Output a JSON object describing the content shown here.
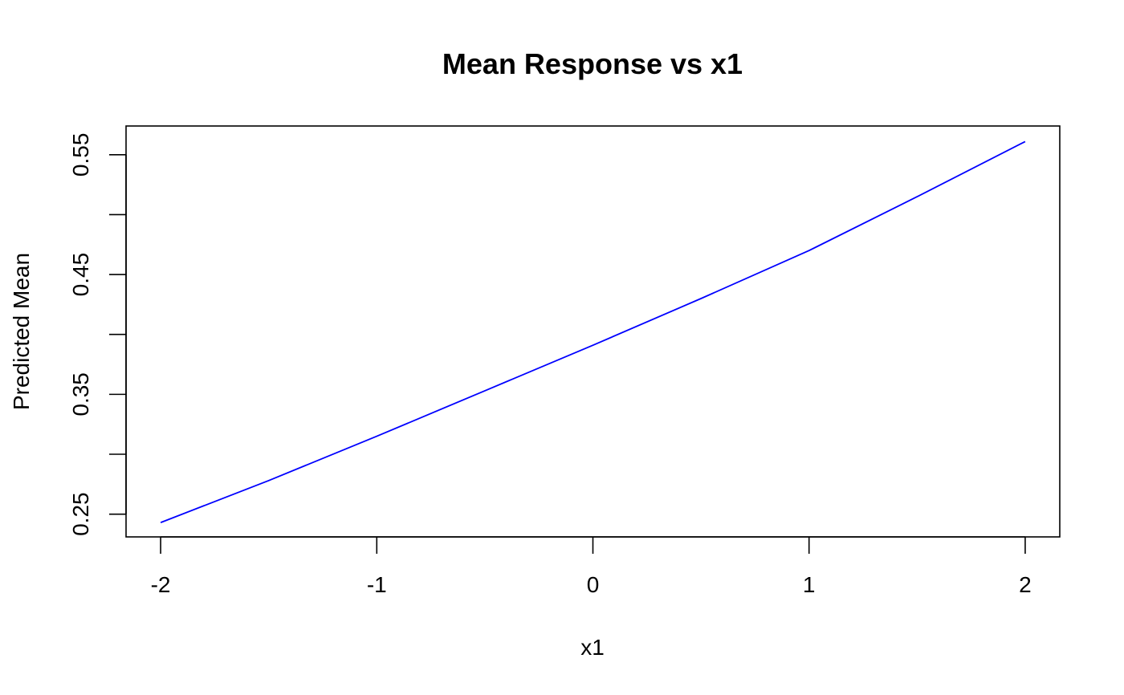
{
  "chart_data": {
    "type": "line",
    "title": "Mean Response vs x1",
    "xlabel": "x1",
    "ylabel": "Predicted Mean",
    "xlim": [
      -2.16,
      2.16
    ],
    "ylim": [
      0.231,
      0.574
    ],
    "xticks": [
      -2,
      -1,
      0,
      1,
      2
    ],
    "xtick_labels": [
      "-2",
      "-1",
      "0",
      "1",
      "2"
    ],
    "yticks": [
      0.25,
      0.3,
      0.35,
      0.4,
      0.45,
      0.5,
      0.55
    ],
    "ytick_labels": [
      "0.25",
      "",
      "0.35",
      "",
      "0.45",
      "",
      "0.55"
    ],
    "grid": false,
    "series": [
      {
        "color": "#0000ff",
        "x": [
          -2.0,
          -1.5,
          -1.0,
          -0.5,
          0.0,
          0.5,
          1.0,
          1.5,
          2.0
        ],
        "y": [
          0.243,
          0.278,
          0.315,
          0.353,
          0.391,
          0.43,
          0.47,
          0.515,
          0.561
        ]
      }
    ]
  }
}
